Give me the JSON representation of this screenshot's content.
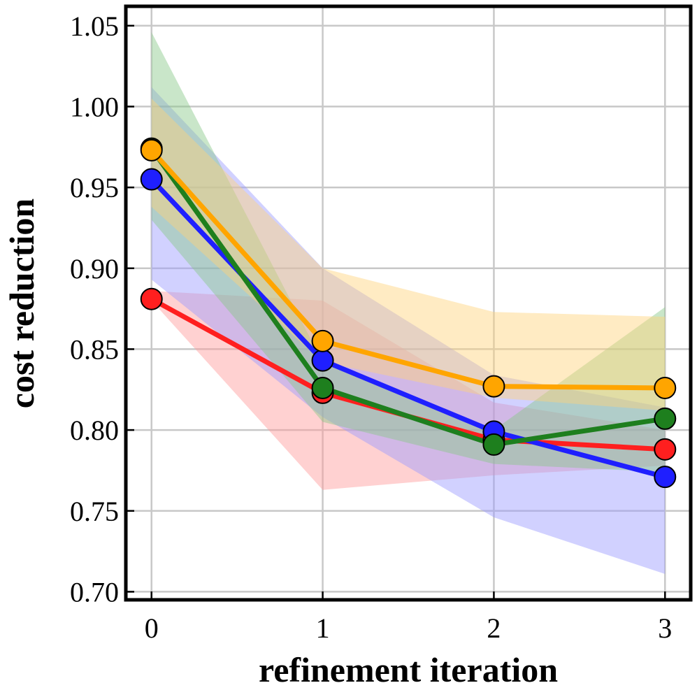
{
  "chart_data": {
    "type": "line",
    "title": "",
    "xlabel": "refinement iteration",
    "ylabel": "cost reduction",
    "x": [
      0,
      1,
      2,
      3
    ],
    "x_tick_labels": [
      "0",
      "1",
      "2",
      "3"
    ],
    "y_ticks": [
      0.7,
      0.75,
      0.8,
      0.85,
      0.9,
      0.95,
      1.0,
      1.05
    ],
    "y_tick_labels": [
      "0.70",
      "0.75",
      "0.80",
      "0.85",
      "0.90",
      "0.95",
      "1.00",
      "1.05"
    ],
    "xlim": [
      -0.15,
      3.15
    ],
    "ylim": [
      0.695,
      1.062
    ],
    "grid": true,
    "legend": "none",
    "series": [
      {
        "name": "red",
        "color": "#ff1f1f",
        "fill_color": "#ff9999",
        "values": [
          0.881,
          0.823,
          0.794,
          0.788
        ],
        "lower": [
          0.88,
          0.763,
          0.772,
          0.778
        ],
        "upper": [
          0.886,
          0.88,
          0.817,
          0.8
        ]
      },
      {
        "name": "blue",
        "color": "#1f1fff",
        "fill_color": "#9999ff",
        "values": [
          0.955,
          0.843,
          0.799,
          0.771
        ],
        "lower": [
          0.893,
          0.808,
          0.746,
          0.711
        ],
        "upper": [
          1.012,
          0.9,
          0.834,
          0.814
        ]
      },
      {
        "name": "green",
        "color": "#1e7f1e",
        "fill_color": "#88c888",
        "values": [
          0.974,
          0.826,
          0.791,
          0.807
        ],
        "lower": [
          0.93,
          0.805,
          0.779,
          0.774
        ],
        "upper": [
          1.046,
          0.842,
          0.8,
          0.876
        ]
      },
      {
        "name": "orange",
        "color": "#ffa500",
        "fill_color": "#ffd27a",
        "values": [
          0.973,
          0.855,
          0.827,
          0.826
        ],
        "lower": [
          0.938,
          0.842,
          0.82,
          0.812
        ],
        "upper": [
          1.005,
          0.9,
          0.873,
          0.87
        ]
      }
    ]
  }
}
